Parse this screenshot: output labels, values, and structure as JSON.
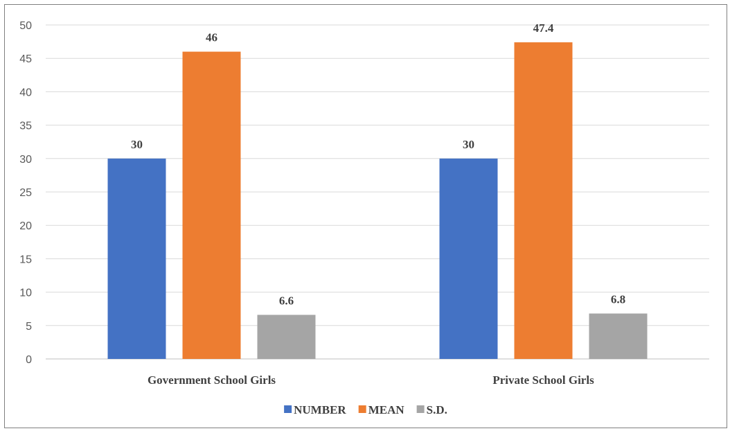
{
  "chart_data": {
    "type": "bar",
    "title": "",
    "xlabel": "",
    "ylabel": "",
    "categories": [
      "Government School Girls",
      "Private School Girls"
    ],
    "series": [
      {
        "name": "NUMBER",
        "values": [
          30,
          30
        ],
        "color": "#4472c4"
      },
      {
        "name": "MEAN",
        "values": [
          46,
          47.4
        ],
        "color": "#ed7d31"
      },
      {
        "name": "S.D.",
        "values": [
          6.6,
          6.8
        ],
        "color": "#a5a5a5"
      }
    ],
    "ylim": [
      0,
      50
    ],
    "yticks": [
      0,
      5,
      10,
      15,
      20,
      25,
      30,
      35,
      40,
      45,
      50
    ],
    "grid": true,
    "legend_position": "bottom",
    "data_labels": true
  }
}
